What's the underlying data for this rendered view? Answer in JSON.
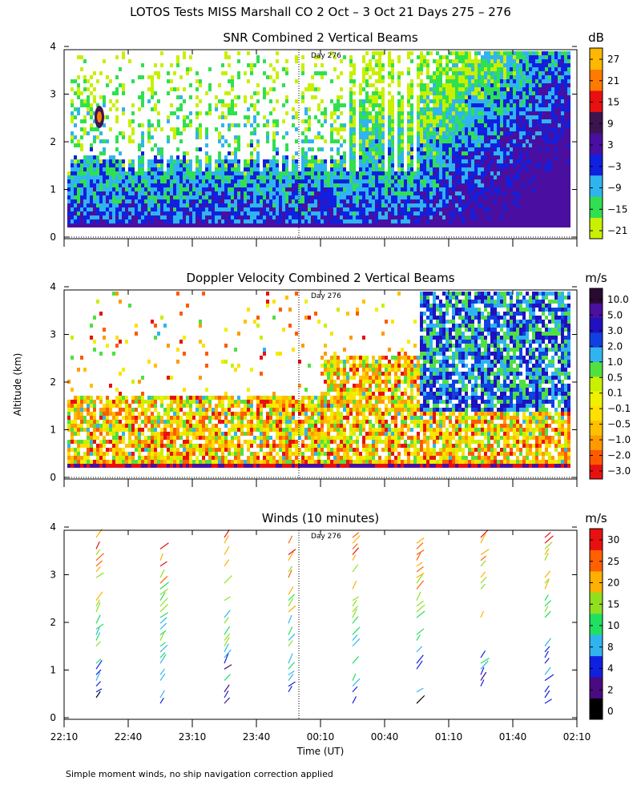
{
  "header": {
    "title": "LOTOS Tests MISS Marshall CO   2 Oct –  3 Oct 21 Days 275 – 276",
    "footnote": "Simple moment winds, no ship navigation correction applied",
    "ylabel": "Altitude (km)",
    "xlabel": "Time (UT)"
  },
  "colors": {
    "snr": [
      "#c8f000",
      "#30e050",
      "#30b4f0",
      "#1020e0",
      "#4a0fa0",
      "#3c1450",
      "#e81010",
      "#ff7a00",
      "#ffb800"
    ],
    "doppler": [
      "#e81010",
      "#ff5a00",
      "#ff9a00",
      "#ffc000",
      "#ffe000",
      "#f0f000",
      "#c8f000",
      "#50e040",
      "#30b4f0",
      "#1040e0",
      "#2010c0",
      "#4a10a0",
      "#2a0a30"
    ],
    "winds": [
      "#000000",
      "#4a0a80",
      "#1020e0",
      "#30b4f0",
      "#20e060",
      "#90e020",
      "#ffb000",
      "#ff6000",
      "#e81010"
    ]
  },
  "chart_data": [
    {
      "type": "heatmap",
      "title": "SNR Combined 2 Vertical Beams",
      "xlabel": "Time (UT)",
      "ylabel": "Altitude (km)",
      "ylim": [
        0,
        4
      ],
      "xlim": [
        "22:10",
        "02:10"
      ],
      "yticks": [
        "0",
        "1",
        "2",
        "3",
        "4"
      ],
      "xticks": [
        "22:10",
        "22:40",
        "23:10",
        "23:40",
        "00:10",
        "00:40",
        "01:10",
        "01:40",
        "02:10"
      ],
      "annotation": "Day 276",
      "colorbar_unit": "dB",
      "colorbar_ticks": [
        "27",
        "21",
        "15",
        "9",
        "3",
        "−3",
        "−9",
        "−15",
        "−21"
      ]
    },
    {
      "type": "heatmap",
      "title": "Doppler Velocity Combined 2 Vertical Beams",
      "xlabel": "Time (UT)",
      "ylabel": "Altitude (km)",
      "ylim": [
        0,
        4
      ],
      "xlim": [
        "22:10",
        "02:10"
      ],
      "yticks": [
        "0",
        "1",
        "2",
        "3",
        "4"
      ],
      "xticks": [
        "22:10",
        "22:40",
        "23:10",
        "23:40",
        "00:10",
        "00:40",
        "01:10",
        "01:40",
        "02:10"
      ],
      "annotation": "Day 276",
      "colorbar_unit": "m/s",
      "colorbar_ticks": [
        "10.0",
        "5.0",
        "3.0",
        "2.0",
        "1.0",
        "0.5",
        "0.1",
        "−0.1",
        "−0.5",
        "−1.0",
        "−2.0",
        "−3.0"
      ]
    },
    {
      "type": "scatter",
      "title": "Winds (10 minutes)",
      "xlabel": "Time (UT)",
      "ylabel": "Altitude (km)",
      "ylim": [
        0,
        4
      ],
      "xlim": [
        "22:10",
        "02:10"
      ],
      "yticks": [
        "0",
        "1",
        "2",
        "3",
        "4"
      ],
      "xticks": [
        "22:10",
        "22:40",
        "23:10",
        "23:40",
        "00:10",
        "00:40",
        "01:10",
        "01:40",
        "02:10"
      ],
      "annotation": "Day 276",
      "colorbar_unit": "m/s",
      "colorbar_ticks": [
        "30",
        "25",
        "20",
        "15",
        "10",
        "8",
        "4",
        "2",
        "0"
      ],
      "profile_times": [
        "22:25",
        "22:55",
        "23:25",
        "23:55",
        "00:25",
        "00:55",
        "01:25",
        "01:55"
      ]
    }
  ]
}
